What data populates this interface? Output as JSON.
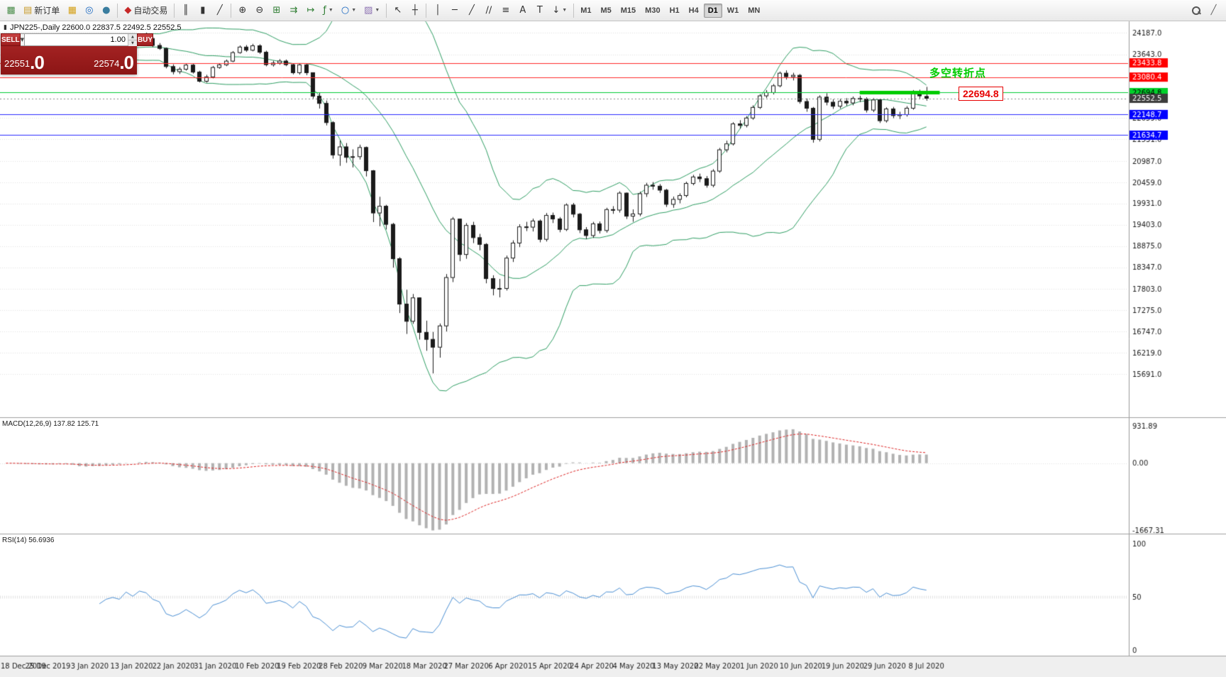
{
  "toolbar": {
    "items": [
      {
        "name": "new-chart-button",
        "glyph": "▩",
        "color": "#4e8f4e"
      },
      {
        "name": "new-order-button",
        "glyph": "▤",
        "color": "#c89b2a",
        "label": "新订单"
      },
      {
        "name": "market-watch-button",
        "glyph": "▦",
        "color": "#d4a017"
      },
      {
        "name": "navigator-button",
        "glyph": "◎",
        "color": "#1565c0"
      },
      {
        "name": "terminal-button",
        "glyph": "●",
        "color": "#3a7d9f"
      },
      {
        "type": "sep"
      },
      {
        "name": "autotrading-button",
        "glyph": "◆",
        "color": "#c62828",
        "label": "自动交易"
      },
      {
        "type": "sep"
      },
      {
        "name": "bar-chart-button",
        "glyph": "║",
        "color": "#333333"
      },
      {
        "name": "candlestick-chart-button",
        "glyph": "▮",
        "color": "#333333"
      },
      {
        "name": "line-chart-button",
        "glyph": "╱",
        "color": "#333333"
      },
      {
        "type": "sep"
      },
      {
        "name": "zoom-in-button",
        "glyph": "⊕",
        "color": "#333333"
      },
      {
        "name": "zoom-out-button",
        "glyph": "⊖",
        "color": "#333333"
      },
      {
        "name": "tile-windows-button",
        "glyph": "⊞",
        "color": "#2e7d32"
      },
      {
        "name": "auto-scroll-button",
        "glyph": "⇉",
        "color": "#2e7d32"
      },
      {
        "name": "chart-shift-button",
        "glyph": "↦",
        "color": "#2e7d32"
      },
      {
        "name": "indicators-button",
        "glyph": "ƒ",
        "color": "#2e7d32",
        "caret": true
      },
      {
        "name": "periods-dropdown-button",
        "glyph": "○",
        "color": "#1565c0",
        "caret": true
      },
      {
        "name": "templates-button",
        "glyph": "▨",
        "color": "#8a6fb0",
        "caret": true
      },
      {
        "type": "sep"
      },
      {
        "name": "cursor-button",
        "glyph": "↖",
        "color": "#333333"
      },
      {
        "name": "crosshair-button",
        "glyph": "┼",
        "color": "#333333"
      },
      {
        "type": "sep"
      },
      {
        "name": "vertical-line-button",
        "glyph": "│",
        "color": "#333333"
      },
      {
        "name": "horizontal-line-button",
        "glyph": "─",
        "color": "#333333"
      },
      {
        "name": "trendline-button",
        "glyph": "╱",
        "color": "#333333"
      },
      {
        "name": "channel-button",
        "glyph": "∕∕",
        "color": "#333333"
      },
      {
        "name": "fibonacci-button",
        "glyph": "≡",
        "color": "#333333"
      },
      {
        "name": "text-button",
        "glyph": "A",
        "color": "#333333"
      },
      {
        "name": "label-button",
        "glyph": "T",
        "color": "#333333"
      },
      {
        "name": "arrows-button",
        "glyph": "↓",
        "color": "#333333",
        "caret": true
      },
      {
        "type": "sep"
      }
    ],
    "timeframes": [
      "M1",
      "M5",
      "M15",
      "M30",
      "H1",
      "H4",
      "D1",
      "W1",
      "MN"
    ],
    "active_timeframe": "D1"
  },
  "chart_header": {
    "text": "JPN225-,Daily 22600.0 22837.5 22492.5 22552.5"
  },
  "trade_panel": {
    "sell_label": "SELL",
    "buy_label": "BUY",
    "volume": "1.00",
    "sell_price_main": "22551",
    "sell_price_big": ".0",
    "buy_price_main": "22574",
    "buy_price_big": ".0"
  },
  "annotation": {
    "turning_point_text": "多空转折点",
    "price_callout": "22694.8"
  },
  "chart_data": {
    "type": "candlestick",
    "symbol": "JPN225-",
    "timeframe": "Daily",
    "last_ohlc": {
      "open": 22600.0,
      "high": 22837.5,
      "low": 22492.5,
      "close": 22552.5
    },
    "colors": {
      "up_fill": "#ffffff",
      "down_fill": "#1a1a1a",
      "outline": "#1a1a1a",
      "bollinger": "#2e9e63",
      "macd_hist": "#b2b2b2",
      "macd_signal": "#dd2222",
      "rsi_line": "#4a8fd4",
      "grid": "#e2e2e2",
      "axis_text": "#1a1a1a"
    },
    "overlays": {
      "bollinger": {
        "period": 20,
        "deviation": 2
      }
    },
    "levels": [
      {
        "price": 23433.8,
        "line": "#ff2a2a",
        "tag_bg": "#ff0000",
        "tag_fg": "#ffffff"
      },
      {
        "price": 23080.4,
        "line": "#ff2a2a",
        "tag_bg": "#ff0000",
        "tag_fg": "#ffffff"
      },
      {
        "price": 22694.8,
        "line": "#00cc33",
        "tag_bg": "#00d02a",
        "tag_fg": "#000000"
      },
      {
        "price": 22148.7,
        "line": "#2a2aff",
        "tag_bg": "#0000ff",
        "tag_fg": "#ffffff"
      },
      {
        "price": 21634.7,
        "line": "#2a2aff",
        "tag_bg": "#0000ff",
        "tag_fg": "#ffffff"
      }
    ],
    "current_price": {
      "price": 22552.5,
      "tag_bg": "#3c3c3c",
      "tag_fg": "#ffffff"
    },
    "green_segment": {
      "price": 22694.8,
      "from_index": 128,
      "to_index": 140,
      "color": "#00cc00",
      "width": 5
    },
    "price_ticks": [
      24187.0,
      23643.0,
      22059.0,
      21531.0,
      20987.0,
      20459.0,
      19931.0,
      19403.0,
      18875.0,
      18347.0,
      17803.0,
      17275.0,
      16747.0,
      16219.0,
      15691.0
    ],
    "date_ticks": [
      "18 Dec 2019",
      "25 Dec 2019",
      "3 Jan 2020",
      "13 Jan 2020",
      "22 Jan 2020",
      "31 Jan 2020",
      "10 Feb 2020",
      "19 Feb 2020",
      "28 Feb 2020",
      "9 Mar 2020",
      "18 Mar 2020",
      "27 Mar 2020",
      "6 Apr 2020",
      "15 Apr 2020",
      "24 Apr 2020",
      "4 May 2020",
      "13 May 2020",
      "22 May 2020",
      "1 Jun 2020",
      "10 Jun 2020",
      "19 Jun 2020",
      "29 Jun 2020",
      "8 Jul 2020"
    ],
    "indicators": {
      "macd": {
        "label": "MACD(12,26,9) 137.82 125.71",
        "params": [
          12,
          26,
          9
        ],
        "scale": [
          931.89,
          0.0,
          -1667.31
        ]
      },
      "rsi": {
        "label": "RSI(14) 56.6936",
        "params": [
          14
        ],
        "value": 56.6936,
        "scale": [
          100,
          50,
          0
        ]
      }
    },
    "candles": [
      [
        23880,
        23980,
        23835,
        23934
      ],
      [
        23934,
        23975,
        23815,
        23865
      ],
      [
        23865,
        23905,
        23770,
        23817
      ],
      [
        23817,
        23878,
        23778,
        23831
      ],
      [
        23831,
        23886,
        23788,
        23830
      ],
      [
        23830,
        23872,
        23748,
        23790
      ],
      [
        23790,
        23896,
        23758,
        23850
      ],
      [
        23850,
        23902,
        23798,
        23837
      ],
      [
        23837,
        23968,
        23812,
        23925
      ],
      [
        23925,
        23966,
        23818,
        23857
      ],
      [
        23857,
        23898,
        23608,
        23657
      ],
      [
        23657,
        23702,
        23268,
        23320
      ],
      [
        23320,
        23618,
        23278,
        23575
      ],
      [
        23575,
        23848,
        23538,
        23800
      ],
      [
        23800,
        23862,
        23698,
        23740
      ],
      [
        23740,
        23898,
        23708,
        23851
      ],
      [
        23851,
        23958,
        23822,
        23900
      ],
      [
        23900,
        23952,
        23808,
        23850
      ],
      [
        23850,
        24088,
        23822,
        24041
      ],
      [
        24041,
        24098,
        23898,
        23934
      ],
      [
        23934,
        24118,
        23902,
        24083
      ],
      [
        24083,
        24187,
        23998,
        24041
      ],
      [
        24041,
        24078,
        23828,
        23869
      ],
      [
        23869,
        23928,
        23758,
        23795
      ],
      [
        23795,
        23818,
        23298,
        23343
      ],
      [
        23343,
        23398,
        23148,
        23216
      ],
      [
        23216,
        23328,
        23158,
        23276
      ],
      [
        23276,
        23418,
        23242,
        23380
      ],
      [
        23380,
        23408,
        23168,
        23205
      ],
      [
        23205,
        23238,
        22948,
        22977
      ],
      [
        22977,
        23138,
        22942,
        23085
      ],
      [
        23085,
        23358,
        23048,
        23320
      ],
      [
        23320,
        23428,
        23288,
        23386
      ],
      [
        23386,
        23518,
        23352,
        23478
      ],
      [
        23478,
        23728,
        23452,
        23690
      ],
      [
        23690,
        23868,
        23662,
        23828
      ],
      [
        23828,
        23878,
        23708,
        23750
      ],
      [
        23750,
        23908,
        23722,
        23860
      ],
      [
        23860,
        23898,
        23658,
        23700
      ],
      [
        23700,
        23738,
        23348,
        23390
      ],
      [
        23390,
        23488,
        23342,
        23430
      ],
      [
        23430,
        23528,
        23388,
        23480
      ],
      [
        23480,
        23518,
        23352,
        23390
      ],
      [
        23390,
        23428,
        23148,
        23190
      ],
      [
        23190,
        23418,
        23142,
        23386
      ],
      [
        23386,
        23412,
        23128,
        23190
      ],
      [
        23190,
        23198,
        22548,
        22605
      ],
      [
        22605,
        22702,
        22298,
        22426
      ],
      [
        22426,
        22498,
        21878,
        21948
      ],
      [
        21948,
        21982,
        21052,
        21143
      ],
      [
        21143,
        21502,
        20872,
        21344
      ],
      [
        21344,
        21438,
        20948,
        21083
      ],
      [
        21083,
        21282,
        20832,
        21100
      ],
      [
        21100,
        21398,
        21028,
        21329
      ],
      [
        21329,
        21352,
        20608,
        20750
      ],
      [
        20750,
        20768,
        19472,
        19699
      ],
      [
        19699,
        20102,
        19368,
        19867
      ],
      [
        19867,
        19902,
        19288,
        19416
      ],
      [
        19416,
        19452,
        18338,
        18560
      ],
      [
        18560,
        18598,
        17208,
        17431
      ],
      [
        17431,
        17788,
        16688,
        17002
      ],
      [
        17002,
        17682,
        16938,
        17586
      ],
      [
        17586,
        17598,
        16548,
        16727
      ],
      [
        16727,
        17018,
        16268,
        16553
      ],
      [
        16553,
        16738,
        15705,
        16358
      ],
      [
        16358,
        16948,
        16098,
        16888
      ],
      [
        16888,
        18178,
        16748,
        18092
      ],
      [
        18092,
        19598,
        17978,
        19547
      ],
      [
        19547,
        19558,
        18498,
        18665
      ],
      [
        18665,
        19448,
        18558,
        19389
      ],
      [
        19389,
        19478,
        18948,
        19085
      ],
      [
        19085,
        19178,
        18768,
        18917
      ],
      [
        18917,
        18948,
        17948,
        18065
      ],
      [
        18065,
        18148,
        17648,
        17818
      ],
      [
        17818,
        18058,
        17598,
        17820
      ],
      [
        17820,
        18638,
        17768,
        18576
      ],
      [
        18576,
        19018,
        18478,
        18950
      ],
      [
        18950,
        19418,
        18848,
        19353
      ],
      [
        19353,
        19478,
        19248,
        19346
      ],
      [
        19346,
        19558,
        19238,
        19499
      ],
      [
        19499,
        19538,
        18968,
        19043
      ],
      [
        19043,
        19698,
        18988,
        19638
      ],
      [
        19638,
        19708,
        19448,
        19550
      ],
      [
        19550,
        19598,
        19218,
        19290
      ],
      [
        19290,
        19938,
        19248,
        19897
      ],
      [
        19897,
        19948,
        19588,
        19669
      ],
      [
        19669,
        19698,
        19198,
        19280
      ],
      [
        19280,
        19348,
        19048,
        19137
      ],
      [
        19137,
        19478,
        19078,
        19429
      ],
      [
        19429,
        19488,
        19188,
        19262
      ],
      [
        19262,
        19828,
        19208,
        19783
      ],
      [
        19783,
        19868,
        19678,
        19771
      ],
      [
        19771,
        20238,
        19708,
        20193
      ],
      [
        20193,
        20208,
        19548,
        19619
      ],
      [
        19619,
        19788,
        19478,
        19674
      ],
      [
        19674,
        20228,
        19618,
        20179
      ],
      [
        20179,
        20448,
        20098,
        20390
      ],
      [
        20390,
        20468,
        20278,
        20366
      ],
      [
        20366,
        20418,
        20198,
        20267
      ],
      [
        20267,
        20298,
        19848,
        19914
      ],
      [
        19914,
        20108,
        19828,
        20037
      ],
      [
        20037,
        20188,
        19938,
        20133
      ],
      [
        20133,
        20478,
        20088,
        20433
      ],
      [
        20433,
        20648,
        20388,
        20595
      ],
      [
        20595,
        20678,
        20468,
        20552
      ],
      [
        20552,
        20618,
        20328,
        20388
      ],
      [
        20388,
        20788,
        20338,
        20741
      ],
      [
        20741,
        21318,
        20698,
        21271
      ],
      [
        21271,
        21498,
        21208,
        21419
      ],
      [
        21419,
        21958,
        21378,
        21916
      ],
      [
        21916,
        22008,
        21798,
        21878
      ],
      [
        21878,
        22108,
        21828,
        22062
      ],
      [
        22062,
        22378,
        22018,
        22326
      ],
      [
        22326,
        22658,
        22288,
        22614
      ],
      [
        22614,
        22758,
        22558,
        22696
      ],
      [
        22696,
        22908,
        22648,
        22864
      ],
      [
        22864,
        23218,
        22828,
        23178
      ],
      [
        23178,
        23248,
        23018,
        23091
      ],
      [
        23091,
        23188,
        22998,
        23125
      ],
      [
        23125,
        23158,
        22418,
        22473
      ],
      [
        22473,
        22548,
        22218,
        22305
      ],
      [
        22305,
        22338,
        21448,
        21531
      ],
      [
        21531,
        22628,
        21478,
        22582
      ],
      [
        22582,
        22678,
        22378,
        22456
      ],
      [
        22456,
        22528,
        22288,
        22355
      ],
      [
        22355,
        22538,
        22298,
        22479
      ],
      [
        22479,
        22558,
        22368,
        22437
      ],
      [
        22437,
        22598,
        22378,
        22549
      ],
      [
        22549,
        22618,
        22458,
        22534
      ],
      [
        22534,
        22578,
        22198,
        22260
      ],
      [
        22260,
        22558,
        22208,
        22512
      ],
      [
        22512,
        22528,
        21938,
        21995
      ],
      [
        21995,
        22328,
        21948,
        22288
      ],
      [
        22288,
        22338,
        22058,
        22122
      ],
      [
        22122,
        22218,
        22038,
        22146
      ],
      [
        22146,
        22358,
        22098,
        22306
      ],
      [
        22306,
        22758,
        22268,
        22714
      ],
      [
        22714,
        22768,
        22548,
        22614
      ],
      [
        22600,
        22837.5,
        22492.5,
        22552.5
      ]
    ]
  }
}
